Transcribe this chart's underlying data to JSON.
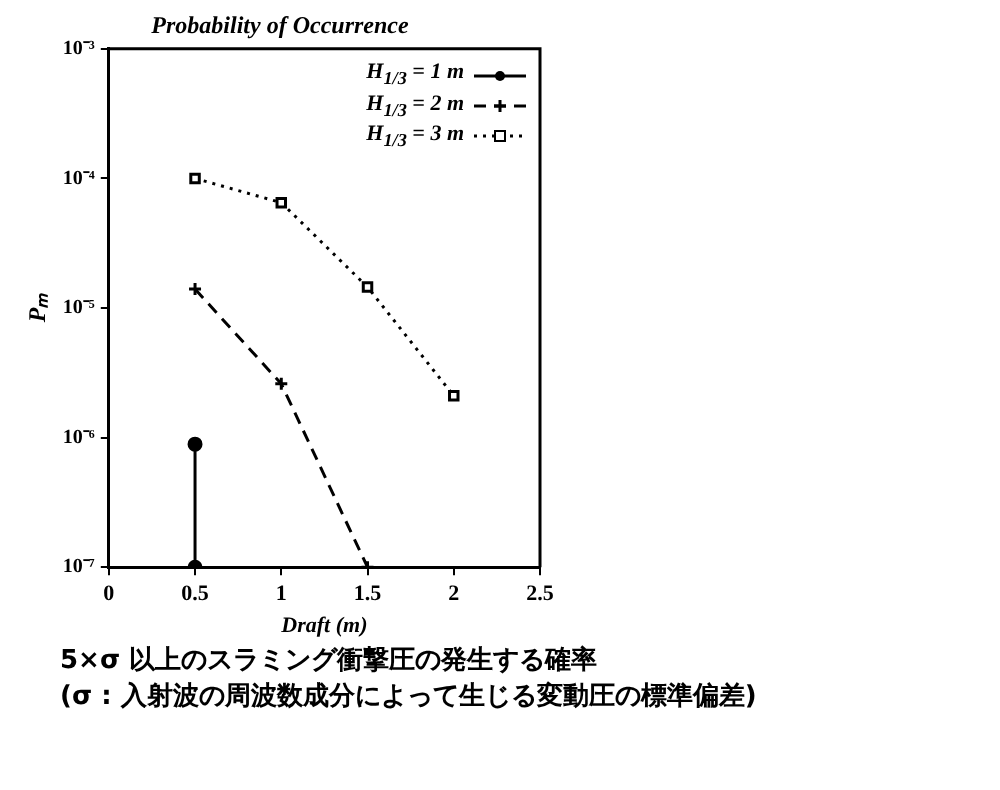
{
  "chart_data": {
    "type": "line",
    "title": "Probability of Occurrence",
    "xlabel": "Draft (m)",
    "ylabel": "Pₘ",
    "xlim": [
      0,
      2.5
    ],
    "xticks": [
      0,
      0.5,
      1,
      1.5,
      2,
      2.5
    ],
    "ylim": [
      1e-07,
      0.001
    ],
    "yticks": [
      {
        "value": 0.001,
        "label": "10⁻³"
      },
      {
        "value": 0.0001,
        "label": "10⁻⁴"
      },
      {
        "value": 1e-05,
        "label": "10⁻⁵"
      },
      {
        "value": 1e-06,
        "label": "10⁻⁶"
      },
      {
        "value": 1e-07,
        "label": "10⁻⁷"
      }
    ],
    "log": "y",
    "grid": false,
    "legend": "top right",
    "series": [
      {
        "name": "H$_{1/3}$ = 1 m",
        "color": "#000000",
        "marker": "circle",
        "line_style": "solid",
        "x": [
          0.5,
          0.5
        ],
        "values": [
          8.9e-07,
          1e-07
        ]
      },
      {
        "name": "H$_{1/3}$ = 2 m",
        "color": "#000000",
        "marker": "cross",
        "line_style": "dashed",
        "x": [
          0.5,
          1,
          1.5
        ],
        "values": [
          1.4e-05,
          2.6e-06,
          1e-07
        ]
      },
      {
        "name": "H$_{1/3}$ = 3 m",
        "color": "#000000",
        "marker": "square",
        "line_style": "dotted",
        "x": [
          0.5,
          1,
          1.5,
          2
        ],
        "values": [
          0.0001,
          6.5e-05,
          1.45e-05,
          2.1e-06
        ]
      }
    ],
    "annotations": [
      "5×σ 以上のスラミング衝撃圧の発生する確率",
      "(σ : 入射波の周波数成分によって生じる変動圧の標準偏差)"
    ]
  }
}
